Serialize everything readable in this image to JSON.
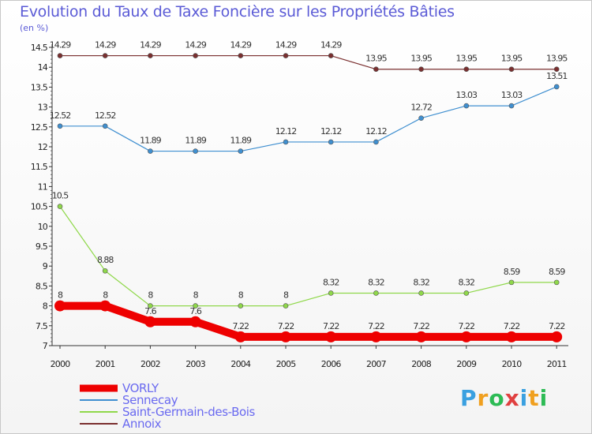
{
  "chart_data": {
    "type": "line",
    "title": "Evolution du Taux de Taxe Foncière sur les Propriétés Bâties",
    "ylabel": "(en %)",
    "xlabel": "",
    "ylim": [
      7,
      14.5
    ],
    "yticks": [
      "7",
      "7.5",
      "8",
      "8.5",
      "9",
      "9.5",
      "10",
      "10.5",
      "11",
      "11.5",
      "12",
      "12.5",
      "13",
      "13.5",
      "14",
      "14.5"
    ],
    "x": [
      "2000",
      "2001",
      "2002",
      "2003",
      "2004",
      "2005",
      "2006",
      "2007",
      "2008",
      "2009",
      "2010",
      "2011"
    ],
    "grid": false,
    "legend_position": "bottom-left",
    "series": [
      {
        "name": "VORLY",
        "color": "#ee0000",
        "values": [
          8,
          8,
          7.6,
          7.6,
          7.22,
          7.22,
          7.22,
          7.22,
          7.22,
          7.22,
          7.22,
          7.22
        ],
        "labels": [
          "8",
          "8",
          "7.6",
          "7.6",
          "7.22",
          "7.22",
          "7.22",
          "7.22",
          "7.22",
          "7.22",
          "7.22",
          "7.22"
        ]
      },
      {
        "name": "Sennecay",
        "color": "#3f8fd0",
        "values": [
          12.52,
          12.52,
          11.89,
          11.89,
          11.89,
          12.12,
          12.12,
          12.12,
          12.72,
          13.03,
          13.03,
          13.51
        ],
        "labels": [
          "12.52",
          "12.52",
          "11.89",
          "11.89",
          "11.89",
          "12.12",
          "12.12",
          "12.12",
          "12.72",
          "13.03",
          "13.03",
          "13.51"
        ]
      },
      {
        "name": "Saint-Germain-des-Bois",
        "color": "#8fd84a",
        "values": [
          10.5,
          8.88,
          8,
          8,
          8,
          8,
          8.32,
          8.32,
          8.32,
          8.32,
          8.59,
          8.59
        ],
        "labels": [
          "10.5",
          "8.88",
          "8",
          "8",
          "8",
          "8",
          "8.32",
          "8.32",
          "8.32",
          "8.32",
          "8.59",
          "8.59"
        ]
      },
      {
        "name": "Annoix",
        "color": "#7a2f2f",
        "values": [
          14.29,
          14.29,
          14.29,
          14.29,
          14.29,
          14.29,
          14.29,
          13.95,
          13.95,
          13.95,
          13.95,
          13.95
        ],
        "labels": [
          "14.29",
          "14.29",
          "14.29",
          "14.29",
          "14.29",
          "14.29",
          "14.29",
          "13.95",
          "13.95",
          "13.95",
          "13.95",
          "13.95"
        ]
      }
    ]
  },
  "logo": {
    "letters": [
      "P",
      "r",
      "o",
      "x",
      "i",
      "t",
      "i"
    ],
    "colors": [
      "#3aa0e0",
      "#f0a020",
      "#2dbb55",
      "#e04040",
      "#3aa0e0",
      "#f0a020",
      "#2dbb55"
    ]
  }
}
